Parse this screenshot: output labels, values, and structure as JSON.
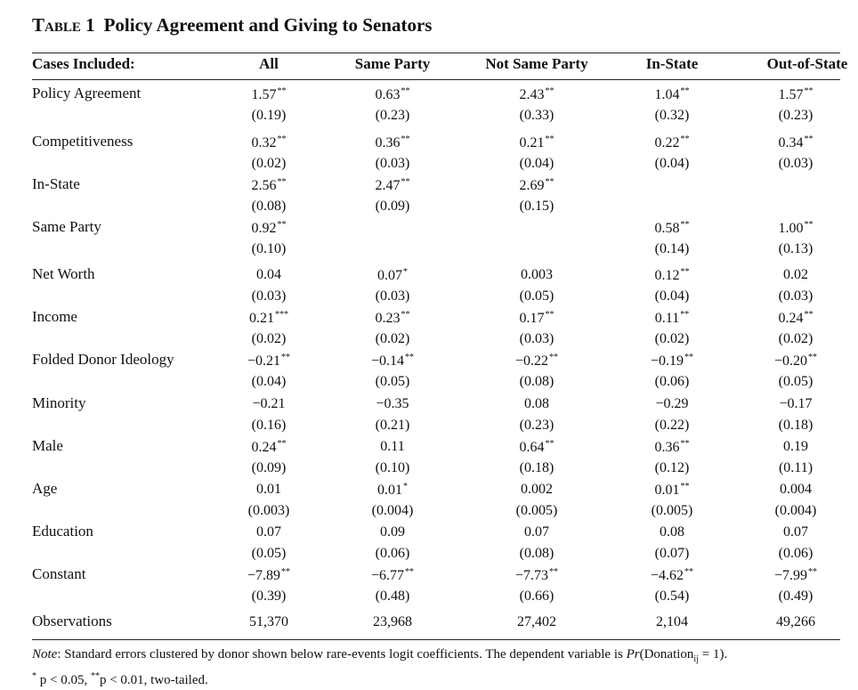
{
  "table": {
    "number": "Table 1",
    "title": "Policy Agreement and Giving to Senators",
    "headers": [
      "Cases Included:",
      "All",
      "Same Party",
      "Not Same Party",
      "In-State",
      "Out-of-State"
    ],
    "rows": [
      {
        "label": "Policy Agreement",
        "coef": [
          [
            "1.57",
            "**"
          ],
          [
            "0.63",
            "**"
          ],
          [
            "2.43",
            "**"
          ],
          [
            "1.04",
            "**"
          ],
          [
            "1.57",
            "**"
          ]
        ],
        "se": [
          "(0.19)",
          "(0.23)",
          "(0.33)",
          "(0.32)",
          "(0.23)"
        ]
      },
      {
        "label": "Competitiveness",
        "coef": [
          [
            "0.32",
            "**"
          ],
          [
            "0.36",
            "**"
          ],
          [
            "0.21",
            "**"
          ],
          [
            "0.22",
            "**"
          ],
          [
            "0.34",
            "**"
          ]
        ],
        "se": [
          "(0.02)",
          "(0.03)",
          "(0.04)",
          "(0.04)",
          "(0.03)"
        ]
      },
      {
        "label": "In-State",
        "coef": [
          [
            "2.56",
            "**"
          ],
          [
            "2.47",
            "**"
          ],
          [
            "2.69",
            "**"
          ],
          [
            "",
            ""
          ],
          [
            "",
            ""
          ]
        ],
        "se": [
          "(0.08)",
          "(0.09)",
          "(0.15)",
          "",
          ""
        ]
      },
      {
        "label": "Same Party",
        "coef": [
          [
            "0.92",
            "**"
          ],
          [
            "",
            ""
          ],
          [
            "",
            ""
          ],
          [
            "0.58",
            "**"
          ],
          [
            "1.00",
            "**"
          ]
        ],
        "se": [
          "(0.10)",
          "",
          "",
          "(0.14)",
          "(0.13)"
        ]
      },
      {
        "label": "Net Worth",
        "coef": [
          [
            "0.04",
            ""
          ],
          [
            "0.07",
            "*"
          ],
          [
            "0.003",
            ""
          ],
          [
            "0.12",
            "**"
          ],
          [
            "0.02",
            ""
          ]
        ],
        "se": [
          "(0.03)",
          "(0.03)",
          "(0.05)",
          "(0.04)",
          "(0.03)"
        ]
      },
      {
        "label": "Income",
        "coef": [
          [
            "0.21",
            "***"
          ],
          [
            "0.23",
            "**"
          ],
          [
            "0.17",
            "**"
          ],
          [
            "0.11",
            "**"
          ],
          [
            "0.24",
            "**"
          ]
        ],
        "se": [
          "(0.02)",
          "(0.02)",
          "(0.03)",
          "(0.02)",
          "(0.02)"
        ]
      },
      {
        "label": "Folded Donor Ideology",
        "coef": [
          [
            "−0.21",
            "**"
          ],
          [
            "−0.14",
            "**"
          ],
          [
            "−0.22",
            "**"
          ],
          [
            "−0.19",
            "**"
          ],
          [
            "−0.20",
            "**"
          ]
        ],
        "se": [
          "(0.04)",
          "(0.05)",
          "(0.08)",
          "(0.06)",
          "(0.05)"
        ]
      },
      {
        "label": "Minority",
        "coef": [
          [
            "−0.21",
            ""
          ],
          [
            "−0.35",
            ""
          ],
          [
            "0.08",
            ""
          ],
          [
            "−0.29",
            ""
          ],
          [
            "−0.17",
            ""
          ]
        ],
        "se": [
          "(0.16)",
          "(0.21)",
          "(0.23)",
          "(0.22)",
          "(0.18)"
        ]
      },
      {
        "label": "Male",
        "coef": [
          [
            "0.24",
            "**"
          ],
          [
            "0.11",
            ""
          ],
          [
            "0.64",
            "**"
          ],
          [
            "0.36",
            "**"
          ],
          [
            "0.19",
            ""
          ]
        ],
        "se": [
          "(0.09)",
          "(0.10)",
          "(0.18)",
          "(0.12)",
          "(0.11)"
        ]
      },
      {
        "label": "Age",
        "coef": [
          [
            "0.01",
            ""
          ],
          [
            "0.01",
            "*"
          ],
          [
            "0.002",
            ""
          ],
          [
            "0.01",
            "**"
          ],
          [
            "0.004",
            ""
          ]
        ],
        "se": [
          "(0.003)",
          "(0.004)",
          "(0.005)",
          "(0.005)",
          "(0.004)"
        ]
      },
      {
        "label": "Education",
        "coef": [
          [
            "0.07",
            ""
          ],
          [
            "0.09",
            ""
          ],
          [
            "0.07",
            ""
          ],
          [
            "0.08",
            ""
          ],
          [
            "0.07",
            ""
          ]
        ],
        "se": [
          "(0.05)",
          "(0.06)",
          "(0.08)",
          "(0.07)",
          "(0.06)"
        ]
      },
      {
        "label": "Constant",
        "coef": [
          [
            "−7.89",
            "**"
          ],
          [
            "−6.77",
            "**"
          ],
          [
            "−7.73",
            "**"
          ],
          [
            "−4.62",
            "**"
          ],
          [
            "−7.99",
            "**"
          ]
        ],
        "se": [
          "(0.39)",
          "(0.48)",
          "(0.66)",
          "(0.54)",
          "(0.49)"
        ]
      }
    ],
    "observations": {
      "label": "Observations",
      "values": [
        "51,370",
        "23,968",
        "27,402",
        "2,104",
        "49,266"
      ]
    },
    "note": {
      "prefix": "Note",
      "text": ": Standard errors clustered by donor shown below rare-events logit coefficients. The dependent variable is ",
      "pr": "Pr",
      "dv_open": "(Donation",
      "dv_sub": "ij",
      "dv_close": " = 1).",
      "sig_star1": "*",
      "sig_text1": " p < 0.05, ",
      "sig_star2": "**",
      "sig_text2": "p < 0.01, two-tailed."
    }
  }
}
